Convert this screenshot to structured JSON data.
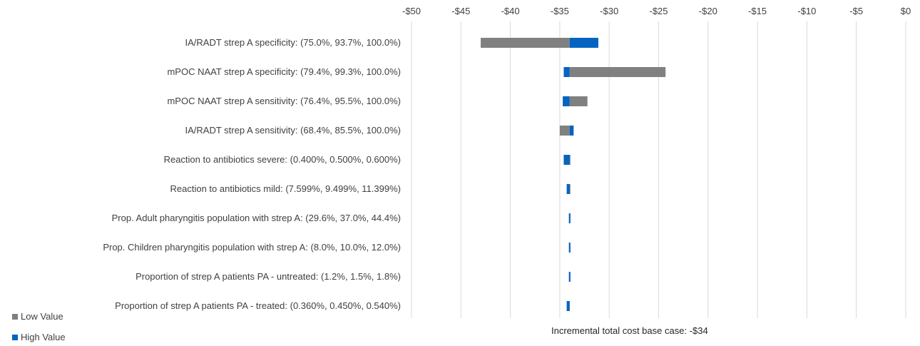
{
  "chart_data": {
    "type": "bar",
    "orientation": "horizontal-tornado",
    "base_case": -34,
    "xlim": [
      -50,
      0
    ],
    "x_ticks": [
      -50,
      -45,
      -40,
      -35,
      -30,
      -25,
      -20,
      -15,
      -10,
      -5,
      0
    ],
    "x_tick_labels": [
      "-$50",
      "-$45",
      "-$40",
      "-$35",
      "-$30",
      "-$25",
      "-$20",
      "-$15",
      "-$10",
      "-$5",
      "$0"
    ],
    "categories": [
      "IA/RADT strep A specificity: (75.0%, 93.7%, 100.0%)",
      "mPOC NAAT strep A specificity: (79.4%, 99.3%, 100.0%)",
      "mPOC NAAT strep A sensitivity: (76.4%, 95.5%, 100.0%)",
      "IA/RADT strep A sensitivity: (68.4%, 85.5%, 100.0%)",
      "Reaction to antibiotics severe: (0.400%, 0.500%, 0.600%)",
      "Reaction to antibiotics mild: (7.599%, 9.499%, 11.399%)",
      "Prop. Adult pharyngitis population with strep A: (29.6%, 37.0%, 44.4%)",
      "Prop. Children pharyngitis population with strep A: (8.0%, 10.0%, 12.0%)",
      "Proportion of strep A patients PA - untreated: (1.2%, 1.5%, 1.8%)",
      "Proportion of strep A patients PA - treated: (0.360%, 0.450%, 0.540%)"
    ],
    "series": [
      {
        "name": "Low Value",
        "color": "#808080",
        "values": [
          -43.0,
          -24.3,
          -32.2,
          -35.0,
          -33.9,
          -34.1,
          -34.1,
          -34.1,
          -34.1,
          -34.2
        ]
      },
      {
        "name": "High Value",
        "color": "#0563C1",
        "values": [
          -31.1,
          -34.6,
          -34.7,
          -33.6,
          -34.6,
          -34.3,
          -34.1,
          -34.1,
          -34.1,
          -34.3
        ]
      }
    ],
    "caption": "Incremental total cost base case: -$34",
    "grid": true,
    "legend_position": "bottom-left"
  }
}
